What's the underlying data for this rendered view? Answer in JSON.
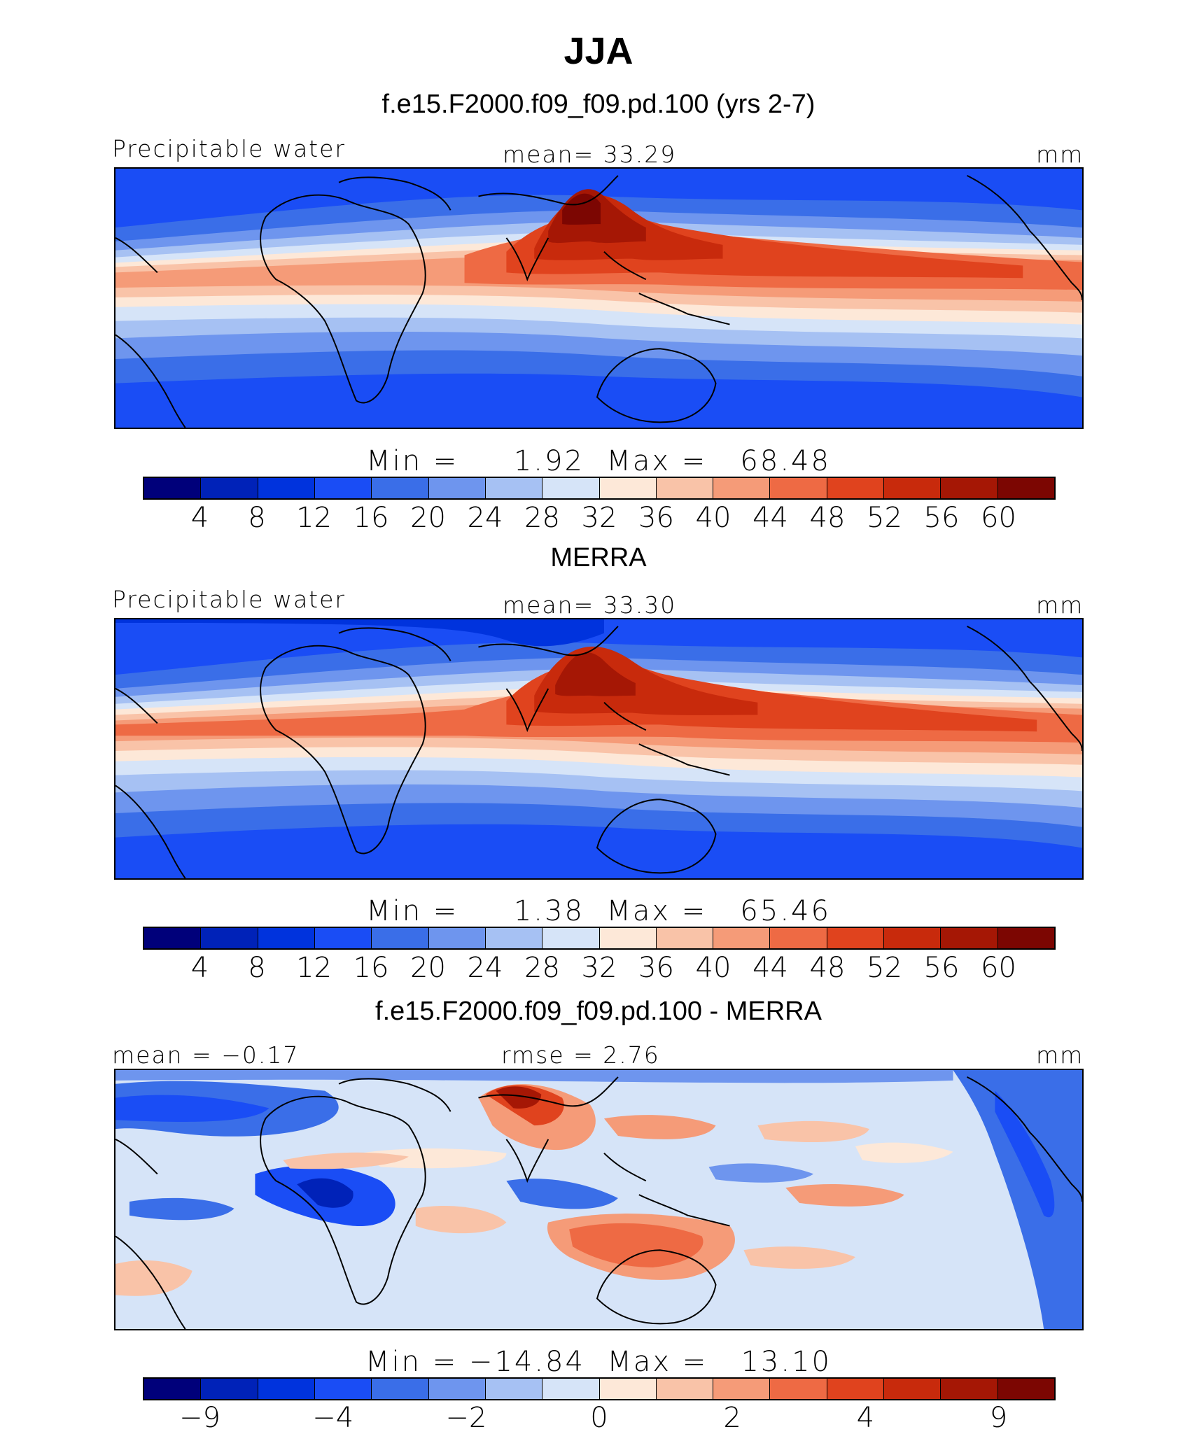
{
  "figure": {
    "season": "JJA",
    "panels": [
      {
        "id": "model",
        "case_title": "f.e15.F2000.f09_f09.pd.100 (yrs 2-7)",
        "left_label": "Precipitable water",
        "center_label": "mean=   33.29",
        "right_label": "mm",
        "min_label": "Min =     1.92",
        "max_label": "Max =   68.48",
        "colorbar_ticks": [
          "4",
          "8",
          "12",
          "16",
          "20",
          "24",
          "28",
          "32",
          "36",
          "40",
          "44",
          "48",
          "52",
          "56",
          "60"
        ]
      },
      {
        "id": "obs",
        "case_title": "MERRA",
        "left_label": "Precipitable water",
        "center_label": "mean=   33.30",
        "right_label": "mm",
        "min_label": "Min =     1.38",
        "max_label": "Max =   65.46",
        "colorbar_ticks": [
          "4",
          "8",
          "12",
          "16",
          "20",
          "24",
          "28",
          "32",
          "36",
          "40",
          "44",
          "48",
          "52",
          "56",
          "60"
        ]
      },
      {
        "id": "diff",
        "case_title": "f.e15.F2000.f09_f09.pd.100 - MERRA",
        "left_label": "mean =  −0.17",
        "center_label": "rmse =    2.76",
        "right_label": "mm",
        "min_label": "Min = −14.84",
        "max_label": "Max =   13.10",
        "colorbar_ticks": [
          "−9",
          "−4",
          "−2",
          "0",
          "2",
          "4",
          "9"
        ]
      }
    ],
    "colors": {
      "palette": [
        "#00007a",
        "#0022b8",
        "#0033dd",
        "#1a4df5",
        "#3a6ee8",
        "#6e95ee",
        "#a6c1f3",
        "#d6e4f8",
        "#fde8d8",
        "#f9c3a8",
        "#f59b78",
        "#ee6a44",
        "#e0431e",
        "#c82a0c",
        "#a51705",
        "#7c0602"
      ],
      "land_outline": "#000000"
    }
  }
}
